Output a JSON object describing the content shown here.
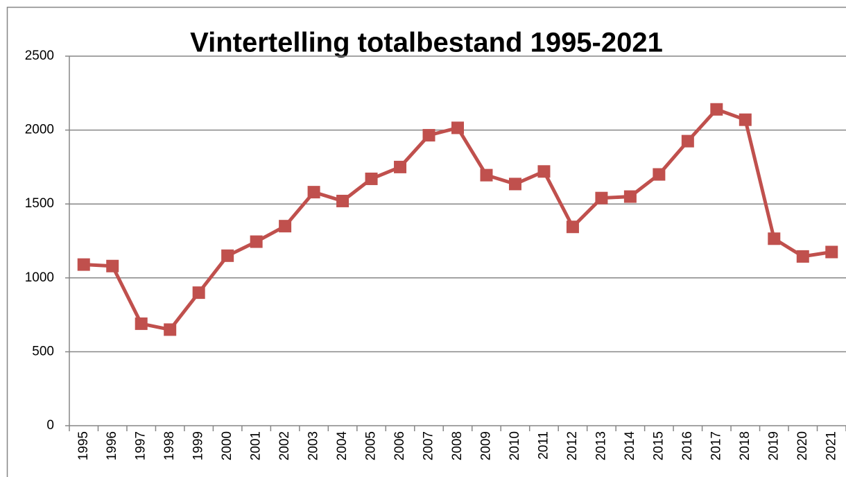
{
  "chart_data": {
    "type": "line",
    "title": "Vintertelling totalbestand 1995-2021",
    "categories": [
      "1995",
      "1996",
      "1997",
      "1998",
      "1999",
      "2000",
      "2001",
      "2002",
      "2003",
      "2004",
      "2005",
      "2006",
      "2007",
      "2008",
      "2009",
      "2010",
      "2011",
      "2012",
      "2013",
      "2014",
      "2015",
      "2016",
      "2017",
      "2018",
      "2019",
      "2020",
      "2021"
    ],
    "values": [
      1090,
      1080,
      690,
      650,
      900,
      1150,
      1245,
      1350,
      1580,
      1520,
      1670,
      1750,
      1965,
      2015,
      1695,
      1635,
      1720,
      1345,
      1540,
      1550,
      1700,
      1925,
      2140,
      2070,
      1265,
      1145,
      1175
    ],
    "color": "#c0504d",
    "ylim": [
      0,
      2500
    ],
    "yticks": [
      0,
      500,
      1000,
      1500,
      2000,
      2500
    ],
    "grid": true
  }
}
